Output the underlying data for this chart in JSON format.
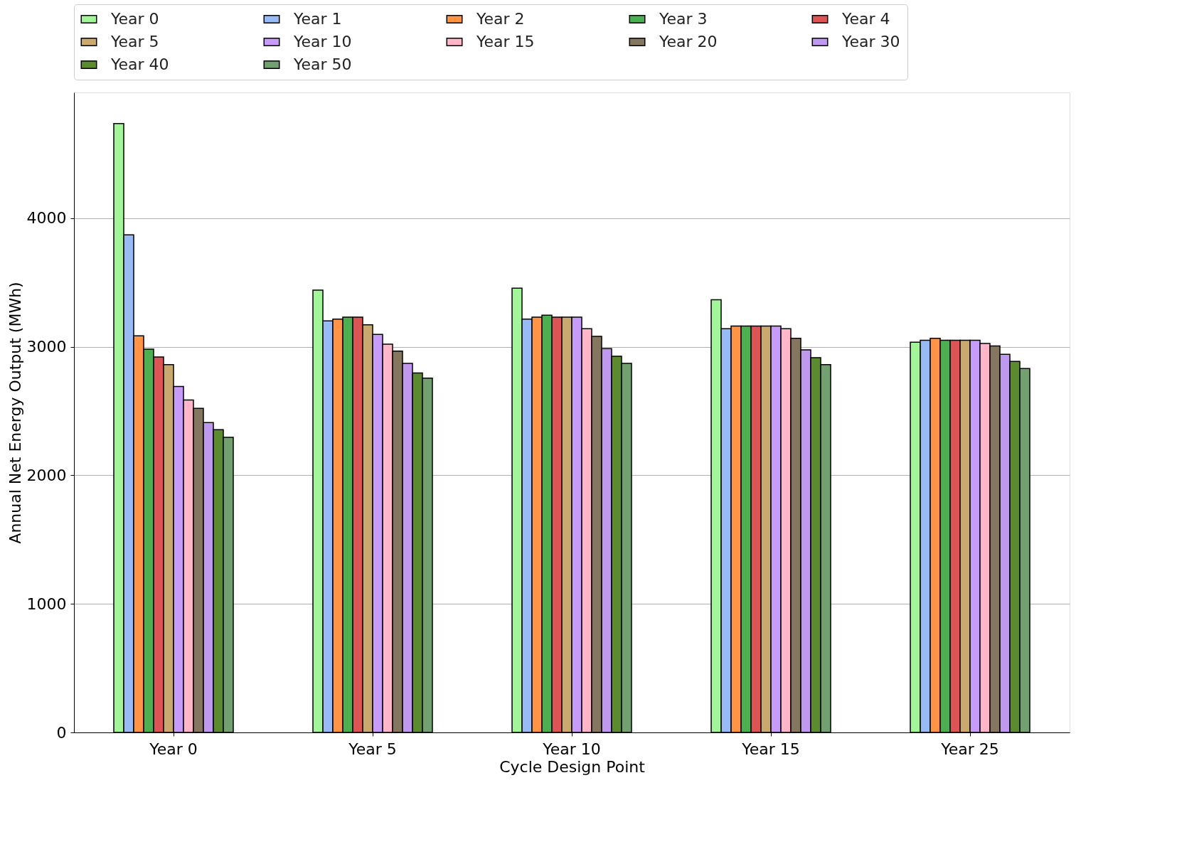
{
  "chart_data": {
    "type": "bar",
    "xlabel": "Cycle Design Point",
    "ylabel": "Annual Net Energy Output (MWh)",
    "categories": [
      "Year 0",
      "Year 5",
      "Year 10",
      "Year 15",
      "Year 25"
    ],
    "ylim": [
      0,
      4977
    ],
    "yticks": [
      0,
      1000,
      2000,
      3000,
      4000
    ],
    "grid": "y",
    "legend": "top",
    "series": [
      {
        "name": "Year 0",
        "color": "#a3f59a",
        "values": [
          4735,
          3440,
          3455,
          3365,
          3035
        ]
      },
      {
        "name": "Year 1",
        "color": "#99bbf5",
        "values": [
          3870,
          3200,
          3215,
          3140,
          3050
        ]
      },
      {
        "name": "Year 2",
        "color": "#ff9447",
        "values": [
          3085,
          3215,
          3230,
          3160,
          3065
        ]
      },
      {
        "name": "Year 3",
        "color": "#4caf50",
        "values": [
          2980,
          3230,
          3245,
          3160,
          3050
        ]
      },
      {
        "name": "Year 4",
        "color": "#dc5454",
        "values": [
          2920,
          3230,
          3230,
          3160,
          3050
        ]
      },
      {
        "name": "Year 5",
        "color": "#c9a96e",
        "values": [
          2860,
          3170,
          3230,
          3160,
          3050
        ]
      },
      {
        "name": "Year 10",
        "color": "#c69cf8",
        "values": [
          2690,
          3095,
          3230,
          3160,
          3050
        ]
      },
      {
        "name": "Year 15",
        "color": "#ffb6c8",
        "values": [
          2585,
          3020,
          3140,
          3140,
          3025
        ]
      },
      {
        "name": "Year 20",
        "color": "#857660",
        "values": [
          2520,
          2965,
          3080,
          3065,
          3005
        ]
      },
      {
        "name": "Year 30",
        "color": "#bf99ee",
        "values": [
          2410,
          2870,
          2985,
          2975,
          2940
        ]
      },
      {
        "name": "Year 40",
        "color": "#5c8a2e",
        "values": [
          2355,
          2795,
          2925,
          2915,
          2885
        ]
      },
      {
        "name": "Year 50",
        "color": "#73a070",
        "values": [
          2295,
          2755,
          2870,
          2860,
          2830
        ]
      }
    ]
  }
}
